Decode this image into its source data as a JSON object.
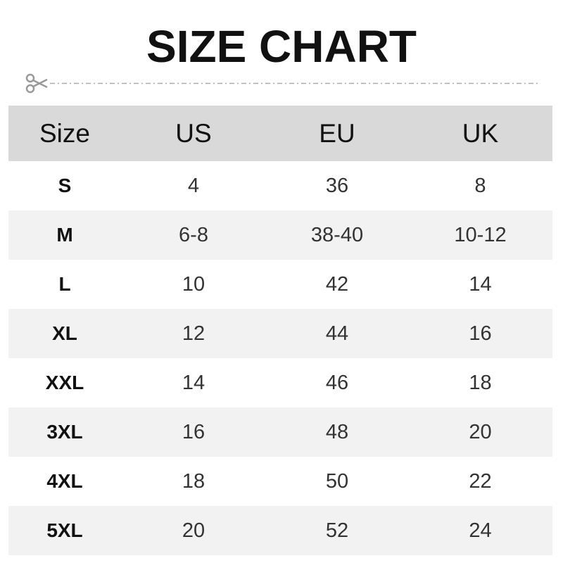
{
  "title": "SIZE CHART",
  "icons": {
    "cut_line": "scissors-icon"
  },
  "colors": {
    "header_bg": "#d9d9d9",
    "alt_row_bg": "#f2f2f2",
    "scissors": "#999999"
  },
  "table": {
    "headers": [
      "Size",
      "US",
      "EU",
      "UK"
    ],
    "rows": [
      [
        "S",
        "4",
        "36",
        "8"
      ],
      [
        "M",
        "6-8",
        "38-40",
        "10-12"
      ],
      [
        "L",
        "10",
        "42",
        "14"
      ],
      [
        "XL",
        "12",
        "44",
        "16"
      ],
      [
        "XXL",
        "14",
        "46",
        "18"
      ],
      [
        "3XL",
        "16",
        "48",
        "20"
      ],
      [
        "4XL",
        "18",
        "50",
        "22"
      ],
      [
        "5XL",
        "20",
        "52",
        "24"
      ]
    ]
  }
}
